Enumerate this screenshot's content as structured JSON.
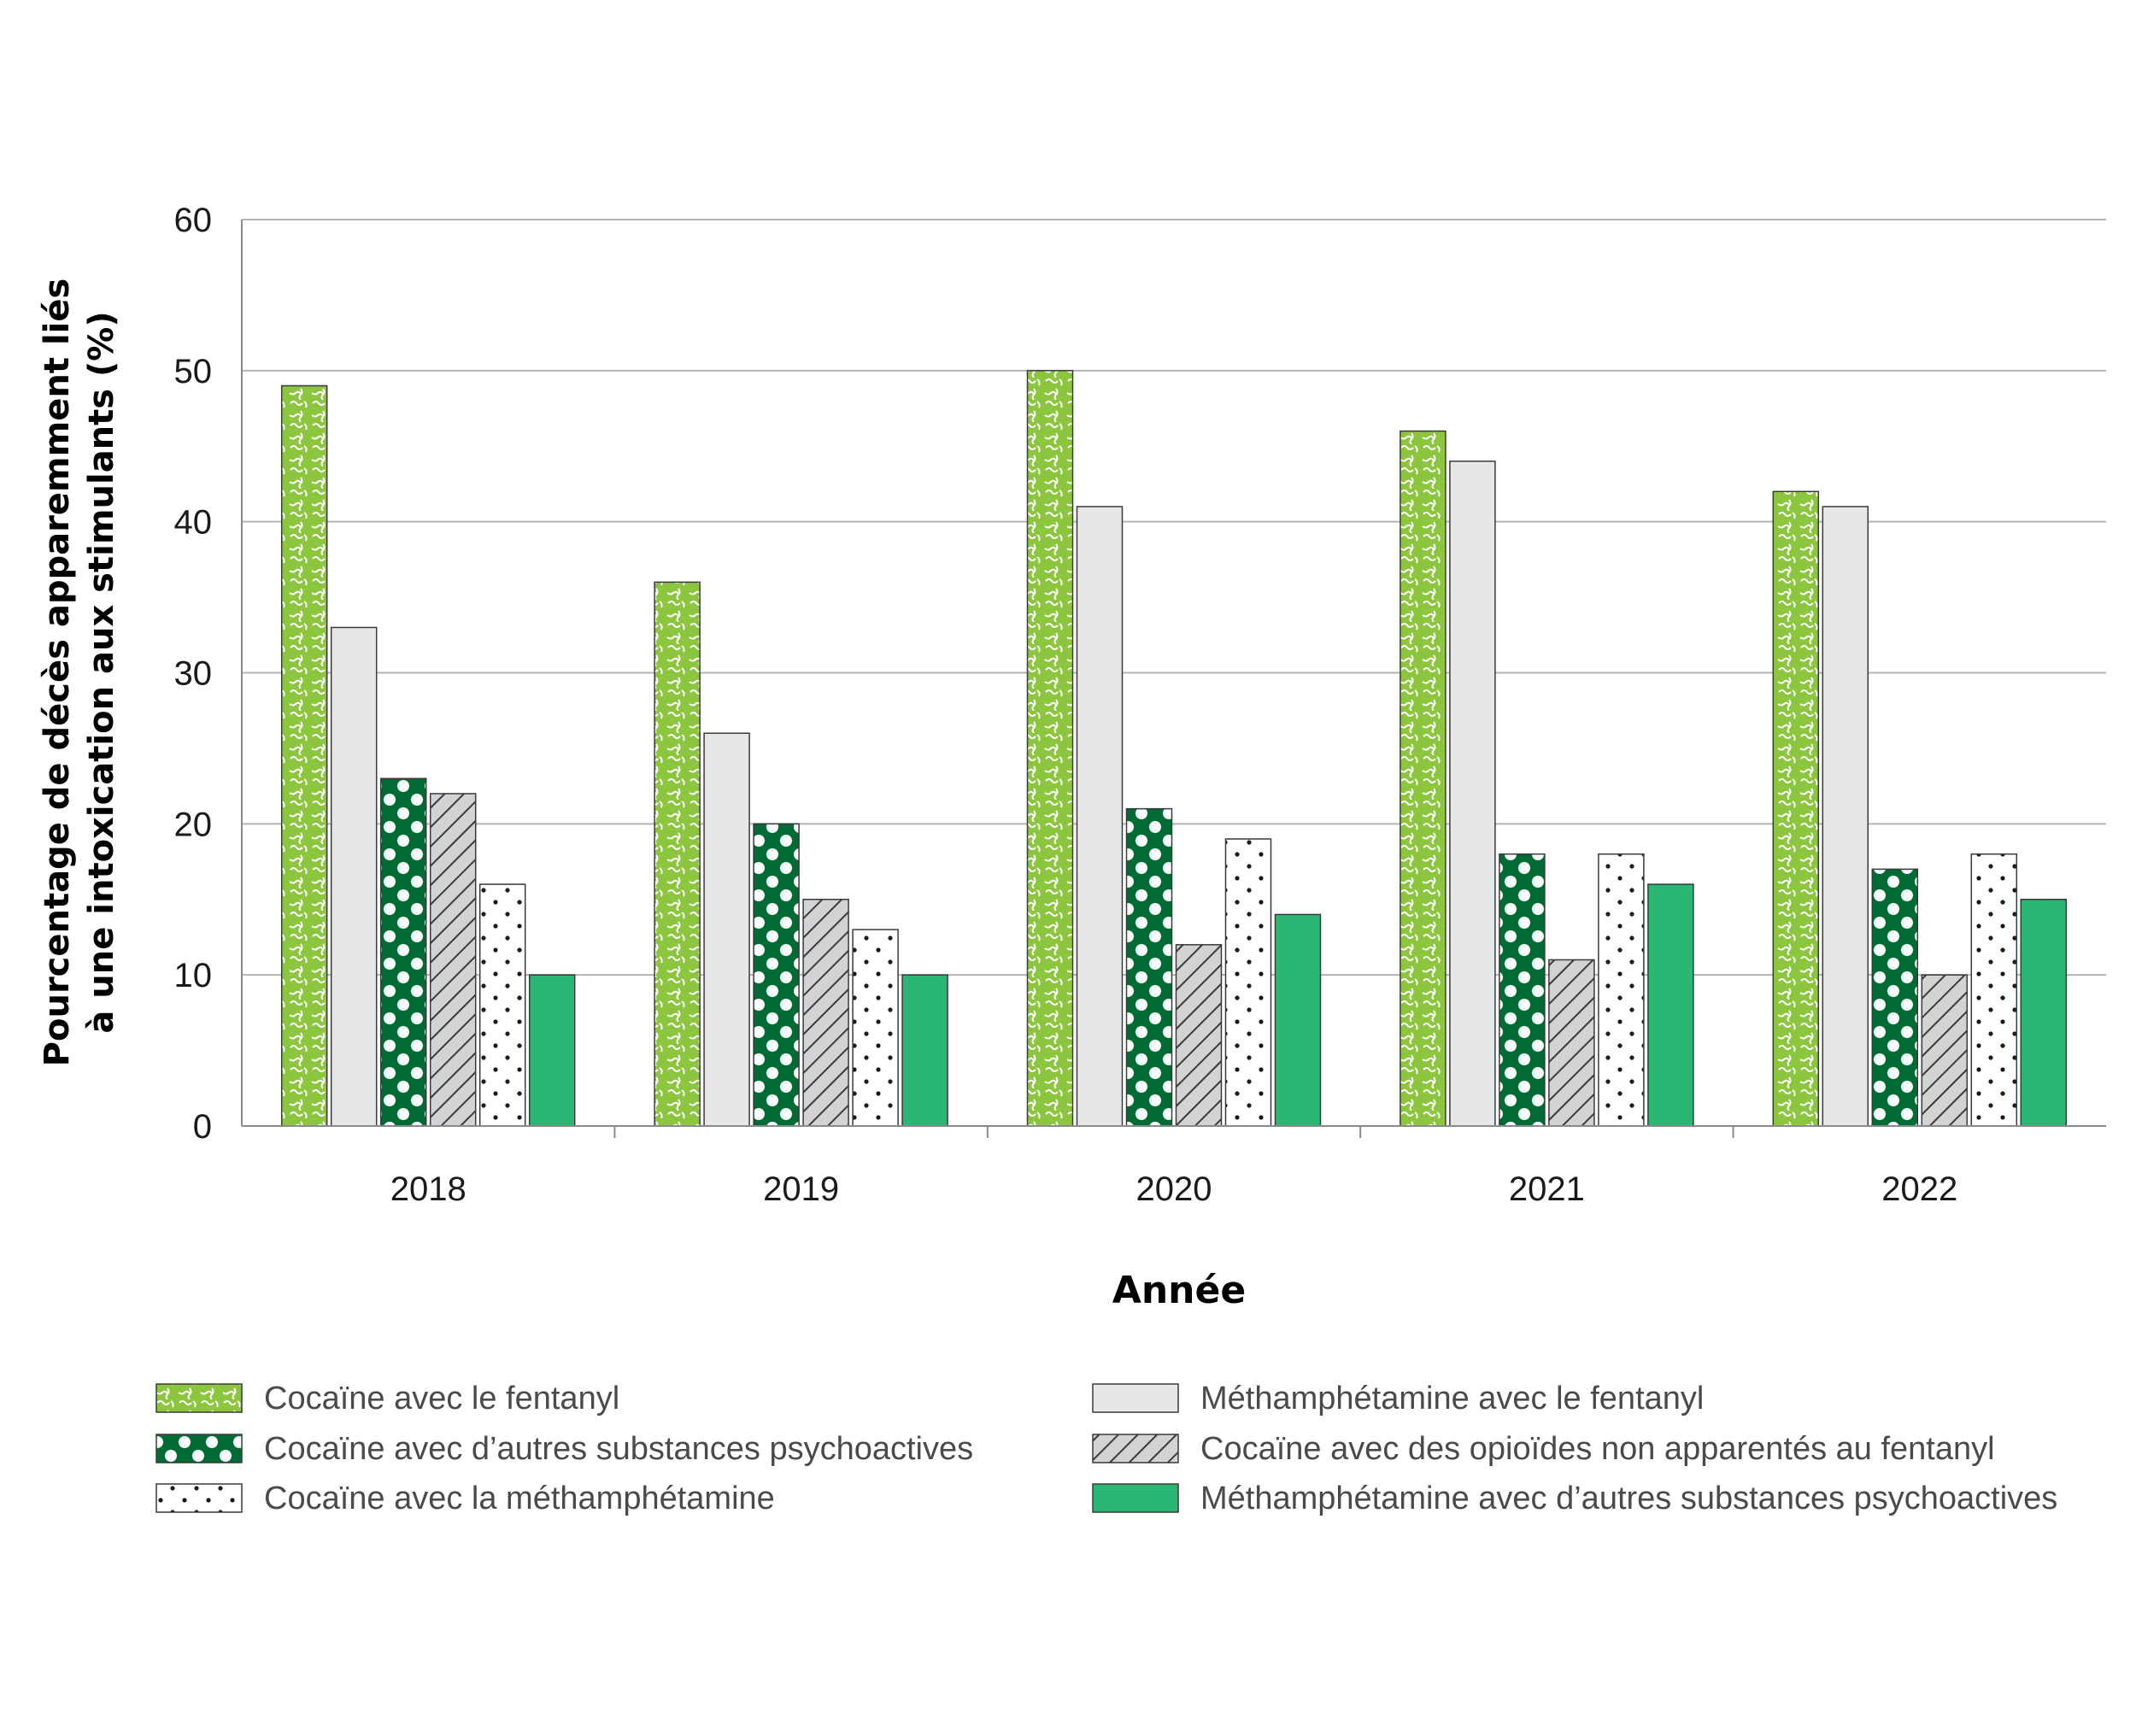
{
  "chart_data": {
    "type": "bar",
    "title": "",
    "xlabel": "Année",
    "ylabel_lines": [
      "Pourcentage de décès apparemment liés",
      "à une intoxication aux stimulants  (%)"
    ],
    "categories": [
      "2018",
      "2019",
      "2020",
      "2021",
      "2022"
    ],
    "ylim": [
      0,
      60
    ],
    "yticks": [
      0,
      10,
      20,
      30,
      40,
      50,
      60
    ],
    "grid": true,
    "legend_position": "bottom",
    "series": [
      {
        "name": "Cocaïne avec le fentanyl",
        "pattern": "squiggle",
        "color": "#8cc63f",
        "values": [
          49,
          36,
          50,
          46,
          42
        ]
      },
      {
        "name": "Méthamphétamine avec le fentanyl",
        "pattern": "solid",
        "color": "#e6e7e8",
        "values": [
          33,
          26,
          41,
          44,
          41
        ]
      },
      {
        "name": "Cocaïne avec d’autres substances psychoactives",
        "pattern": "polka-dots",
        "color": "#006b35",
        "values": [
          23,
          20,
          21,
          18,
          17
        ]
      },
      {
        "name": "Cocaïne avec des opioïdes non apparentés au fentanyl",
        "pattern": "diagonal-hatch",
        "color": "#d1d3d4",
        "values": [
          22,
          15,
          12,
          11,
          10
        ]
      },
      {
        "name": "Cocaïne avec la méthamphétamine",
        "pattern": "small-dots",
        "color": "#ffffff",
        "values": [
          16,
          13,
          19,
          18,
          18
        ]
      },
      {
        "name": "Méthamphétamine avec d’autres substances psychoactives",
        "pattern": "solid",
        "color": "#2bb673",
        "values": [
          10,
          10,
          14,
          16,
          15
        ]
      }
    ]
  }
}
